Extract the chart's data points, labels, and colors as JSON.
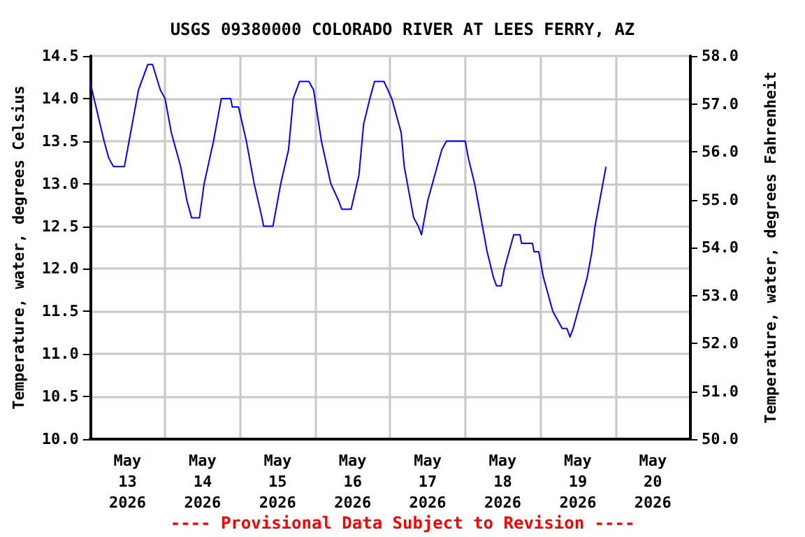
{
  "chart_data": {
    "type": "line",
    "title": "USGS 09380000 COLORADO RIVER AT LEES FERRY, AZ",
    "ylabel": "Temperature, water, degrees Celsius",
    "y2label": "Temperature, water, degrees Fahrenheit",
    "annotations": [
      "---- Provisional Data Subject to Revision ----"
    ],
    "x": [
      "2026-05-13T00:00",
      "2026-05-13T04:30",
      "2026-05-13T06:00",
      "2026-05-13T07:30",
      "2026-05-13T11:00",
      "2026-05-13T12:30",
      "2026-05-13T15:30",
      "2026-05-13T18:30",
      "2026-05-13T20:00",
      "2026-05-13T22:30",
      "2026-05-14T00:00",
      "2026-05-14T02:00",
      "2026-05-14T05:00",
      "2026-05-14T07:00",
      "2026-05-14T08:30",
      "2026-05-14T11:00",
      "2026-05-14T12:30",
      "2026-05-14T15:30",
      "2026-05-14T18:00",
      "2026-05-14T21:00",
      "2026-05-14T21:30",
      "2026-05-14T23:30",
      "2026-05-15T02:00",
      "2026-05-15T04:30",
      "2026-05-15T07:00",
      "2026-05-15T07:30",
      "2026-05-15T10:30",
      "2026-05-15T13:00",
      "2026-05-15T15:30",
      "2026-05-15T17:00",
      "2026-05-15T19:00",
      "2026-05-15T22:00",
      "2026-05-15T23:30",
      "2026-05-16T02:00",
      "2026-05-16T05:00",
      "2026-05-16T07:30",
      "2026-05-16T08:30",
      "2026-05-16T11:30",
      "2026-05-16T14:00",
      "2026-05-16T15:30",
      "2026-05-16T17:30",
      "2026-05-16T19:00",
      "2026-05-16T22:00",
      "2026-05-17T00:30",
      "2026-05-17T03:30",
      "2026-05-17T04:30",
      "2026-05-17T06:00",
      "2026-05-17T07:30",
      "2026-05-17T09:00",
      "2026-05-17T10:00",
      "2026-05-17T11:00",
      "2026-05-17T12:00",
      "2026-05-17T13:30",
      "2026-05-17T15:00",
      "2026-05-17T16:30",
      "2026-05-17T18:00",
      "2026-05-18T00:00",
      "2026-05-18T01:00",
      "2026-05-18T03:00",
      "2026-05-18T04:30",
      "2026-05-18T07:00",
      "2026-05-18T09:00",
      "2026-05-18T10:00",
      "2026-05-18T11:30",
      "2026-05-18T12:30",
      "2026-05-18T14:00",
      "2026-05-18T15:30",
      "2026-05-18T17:30",
      "2026-05-18T18:00",
      "2026-05-18T21:30",
      "2026-05-18T22:00",
      "2026-05-18T23:30",
      "2026-05-19T01:00",
      "2026-05-19T02:30",
      "2026-05-19T04:00",
      "2026-05-19T05:30",
      "2026-05-19T07:00",
      "2026-05-19T08:30",
      "2026-05-19T09:30",
      "2026-05-19T10:30",
      "2026-05-19T12:00",
      "2026-05-19T13:30",
      "2026-05-19T15:00",
      "2026-05-19T16:30",
      "2026-05-19T17:30",
      "2026-05-19T18:30",
      "2026-05-19T19:30",
      "2026-05-19T21:00"
    ],
    "series": [
      {
        "color": "#0000ff",
        "values": [
          14.2,
          13.5,
          13.3,
          13.2,
          13.2,
          13.5,
          14.1,
          14.4,
          14.4,
          14.1,
          14.0,
          13.6,
          13.2,
          12.8,
          12.6,
          12.6,
          13.0,
          13.5,
          14.0,
          14.0,
          13.9,
          13.9,
          13.5,
          13.0,
          12.6,
          12.5,
          12.5,
          13.0,
          13.4,
          14.0,
          14.2,
          14.2,
          14.1,
          13.5,
          13.0,
          12.8,
          12.7,
          12.7,
          13.1,
          13.7,
          14.0,
          14.2,
          14.2,
          14.0,
          13.6,
          13.2,
          12.9,
          12.6,
          12.5,
          12.4,
          12.6,
          12.8,
          13.0,
          13.2,
          13.4,
          13.5,
          13.5,
          13.3,
          13.0,
          12.7,
          12.2,
          11.9,
          11.8,
          11.8,
          12.0,
          12.2,
          12.4,
          12.4,
          12.3,
          12.3,
          12.2,
          12.2,
          11.9,
          11.7,
          11.5,
          11.4,
          11.3,
          11.3,
          11.2,
          11.3,
          11.5,
          11.7,
          11.9,
          12.2,
          12.5,
          12.7,
          12.9,
          13.2
        ]
      }
    ],
    "xlim": [
      "2026-05-13T00:00",
      "2026-05-21T00:00"
    ],
    "xticks": [
      {
        "value": "2026-05-13T00:00",
        "label": null
      },
      {
        "value": "2026-05-13T12:00",
        "label": "May\n13\n2026"
      },
      {
        "value": "2026-05-14T00:00",
        "label": null
      },
      {
        "value": "2026-05-14T12:00",
        "label": "May\n14\n2026"
      },
      {
        "value": "2026-05-15T00:00",
        "label": null
      },
      {
        "value": "2026-05-15T12:00",
        "label": "May\n15\n2026"
      },
      {
        "value": "2026-05-16T00:00",
        "label": null
      },
      {
        "value": "2026-05-16T12:00",
        "label": "May\n16\n2026"
      },
      {
        "value": "2026-05-17T00:00",
        "label": null
      },
      {
        "value": "2026-05-17T12:00",
        "label": "May\n17\n2026"
      },
      {
        "value": "2026-05-18T00:00",
        "label": null
      },
      {
        "value": "2026-05-18T12:00",
        "label": "May\n18\n2026"
      },
      {
        "value": "2026-05-19T00:00",
        "label": null
      },
      {
        "value": "2026-05-19T12:00",
        "label": "May\n19\n2026"
      },
      {
        "value": "2026-05-20T00:00",
        "label": null
      },
      {
        "value": "2026-05-20T12:00",
        "label": "May\n20\n2026"
      },
      {
        "value": "2026-05-21T00:00",
        "label": null
      }
    ],
    "ylim": [
      10,
      14.5
    ],
    "yticks": [
      {
        "value": 10,
        "label": "10.0"
      },
      {
        "value": 10.5,
        "label": "10.5"
      },
      {
        "value": 11,
        "label": "11.0"
      },
      {
        "value": 11.5,
        "label": "11.5"
      },
      {
        "value": 12,
        "label": "12.0"
      },
      {
        "value": 12.5,
        "label": "12.5"
      },
      {
        "value": 13,
        "label": "13.0"
      },
      {
        "value": 13.5,
        "label": "13.5"
      },
      {
        "value": 14,
        "label": "14.0"
      },
      {
        "value": 14.5,
        "label": "14.5"
      }
    ],
    "y2lim": [
      50,
      58
    ],
    "y2ticks": [
      {
        "value": 50,
        "label": "50.0"
      },
      {
        "value": 51,
        "label": "51.0"
      },
      {
        "value": 52,
        "label": "52.0"
      },
      {
        "value": 53,
        "label": "53.0"
      },
      {
        "value": 54,
        "label": "54.0"
      },
      {
        "value": 55,
        "label": "55.0"
      },
      {
        "value": 56,
        "label": "56.0"
      },
      {
        "value": 57,
        "label": "57.0"
      },
      {
        "value": 58,
        "label": "58.0"
      }
    ],
    "grid": true,
    "marker": "none",
    "line_style": "solid"
  }
}
